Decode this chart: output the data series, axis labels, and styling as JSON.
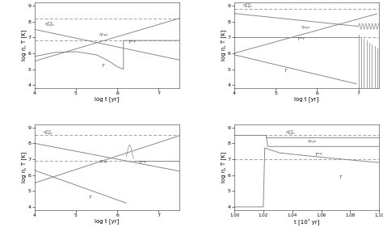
{
  "figure_size": [
    4.74,
    2.92
  ],
  "dpi": 100,
  "background": "#ffffff",
  "line_color": "#888888",
  "line_width": 0.7,
  "panels": [
    {
      "xlim": [
        4,
        7.5
      ],
      "ylim": [
        3.8,
        9.2
      ],
      "xlabel": "log t [yr]",
      "ylabel": "log η, T [K]",
      "dashed_upper": 8.2,
      "dashed_lower": 6.8
    },
    {
      "xlim": [
        4,
        7.5
      ],
      "ylim": [
        3.8,
        9.2
      ],
      "xlabel": "log t [yr]",
      "ylabel": "log η, T [K]",
      "dashed_upper": 8.8,
      "dashed_lower": 7.0
    },
    {
      "xlim": [
        4,
        7.5
      ],
      "ylim": [
        3.8,
        9.2
      ],
      "xlabel": "log t [yr]",
      "ylabel": "log η, T [K]",
      "dashed_upper": 8.5,
      "dashed_lower": 6.9
    },
    {
      "xlim": [
        1.0,
        1.1
      ],
      "ylim": [
        3.8,
        9.2
      ],
      "xlabel": "t [10⁷ yr]",
      "ylabel": "log η, T [K]",
      "dashed_upper": 8.5,
      "dashed_lower": 7.0
    }
  ]
}
